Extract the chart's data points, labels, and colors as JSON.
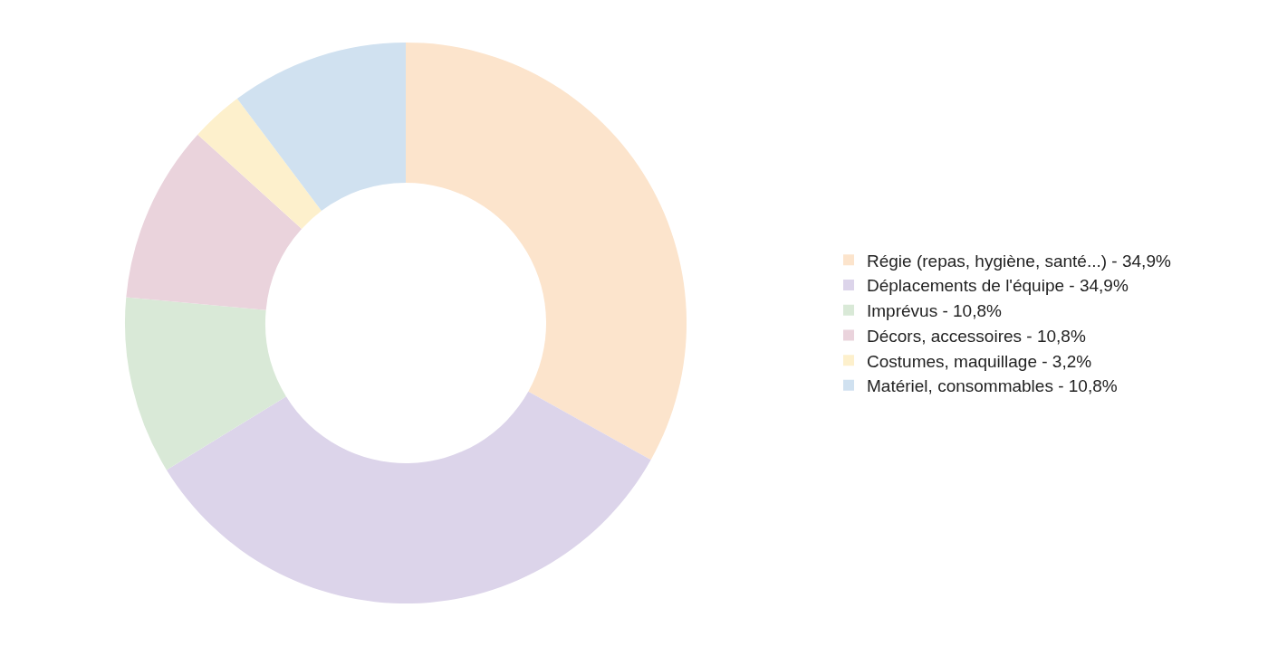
{
  "chart_data": {
    "type": "donut",
    "categories": [
      "Régie (repas, hygiène, santé...)",
      "Déplacements de l'équipe",
      "Imprévus",
      "Décors, accessoires",
      "Costumes, maquillage",
      "Matériel, consommables"
    ],
    "values": [
      34.9,
      34.9,
      10.8,
      10.8,
      3.2,
      10.8
    ],
    "value_labels": [
      "34,9%",
      "34,9%",
      "10,8%",
      "10,8%",
      "3,2%",
      "10,8%"
    ],
    "colors": [
      "#fce4cc",
      "#dcd4ea",
      "#d9e9d7",
      "#ead3dc",
      "#fdf0cc",
      "#d0e1f0"
    ],
    "legend": "right"
  }
}
